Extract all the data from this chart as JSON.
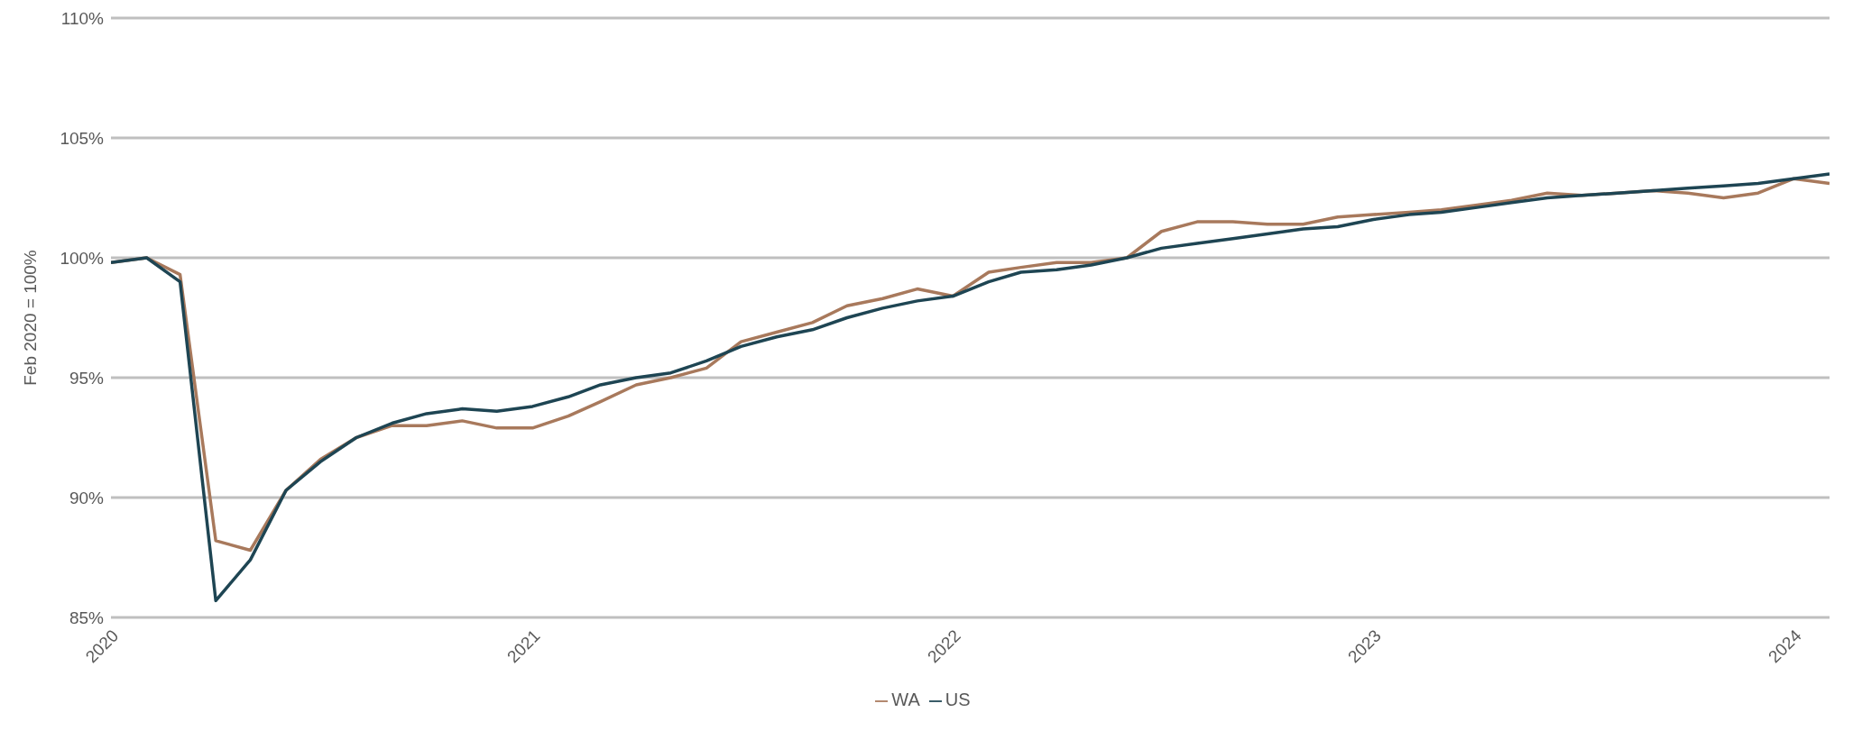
{
  "chart_data": {
    "type": "line",
    "ylabel": "Feb 2020 = 100%",
    "x": [
      "2020-01",
      "2020-02",
      "2020-03",
      "2020-04",
      "2020-05",
      "2020-06",
      "2020-07",
      "2020-08",
      "2020-09",
      "2020-10",
      "2020-11",
      "2020-12",
      "2021-01",
      "2021-02",
      "2021-03",
      "2021-04",
      "2021-05",
      "2021-06",
      "2021-07",
      "2021-08",
      "2021-09",
      "2021-10",
      "2021-11",
      "2021-12",
      "2022-01",
      "2022-02",
      "2022-03",
      "2022-04",
      "2022-05",
      "2022-06",
      "2022-07",
      "2022-08",
      "2022-09",
      "2022-10",
      "2022-11",
      "2022-12",
      "2023-01",
      "2023-02",
      "2023-03",
      "2023-04",
      "2023-05",
      "2023-06",
      "2023-07",
      "2023-08",
      "2023-09",
      "2023-10",
      "2023-11",
      "2023-12",
      "2024-01",
      "2024-02"
    ],
    "series": [
      {
        "name": "WA",
        "color": "#a8795c",
        "values": [
          99.8,
          100,
          99.3,
          88.2,
          87.8,
          90.3,
          91.6,
          92.5,
          93.0,
          93.0,
          93.2,
          92.9,
          92.9,
          93.4,
          94.0,
          94.7,
          95.0,
          95.4,
          96.5,
          96.9,
          97.3,
          98.0,
          98.3,
          98.7,
          98.4,
          99.4,
          99.6,
          99.8,
          99.8,
          100.0,
          101.1,
          101.5,
          101.5,
          101.4,
          101.4,
          101.7,
          101.8,
          101.9,
          102.0,
          102.2,
          102.4,
          102.7,
          102.6,
          102.7,
          102.8,
          102.7,
          102.5,
          102.7,
          103.3,
          103.1
        ]
      },
      {
        "name": "US",
        "color": "#1e4553",
        "values": [
          99.8,
          100,
          99.0,
          85.7,
          87.4,
          90.3,
          91.5,
          92.5,
          93.1,
          93.5,
          93.7,
          93.6,
          93.8,
          94.2,
          94.7,
          95.0,
          95.2,
          95.7,
          96.3,
          96.7,
          97.0,
          97.5,
          97.9,
          98.2,
          98.4,
          99.0,
          99.4,
          99.5,
          99.7,
          100.0,
          100.4,
          100.6,
          100.8,
          101.0,
          101.2,
          101.3,
          101.6,
          101.8,
          101.9,
          102.1,
          102.3,
          102.5,
          102.6,
          102.7,
          102.8,
          102.9,
          103.0,
          103.1,
          103.3,
          103.5
        ]
      }
    ],
    "xlim": [
      "2020-01",
      "2024-02"
    ],
    "xticks": [
      "2020",
      "2021",
      "2022",
      "2023",
      "2024"
    ],
    "ylim": [
      85,
      110
    ],
    "yticks": [
      {
        "value": 85,
        "label": "85%"
      },
      {
        "value": 90,
        "label": "90%"
      },
      {
        "value": 95,
        "label": "95%"
      },
      {
        "value": 100,
        "label": "100%"
      },
      {
        "value": 105,
        "label": "105%"
      },
      {
        "value": 110,
        "label": "110%"
      }
    ],
    "grid": "y",
    "legend": "bottom",
    "marker": "none",
    "line_style": "solid"
  }
}
